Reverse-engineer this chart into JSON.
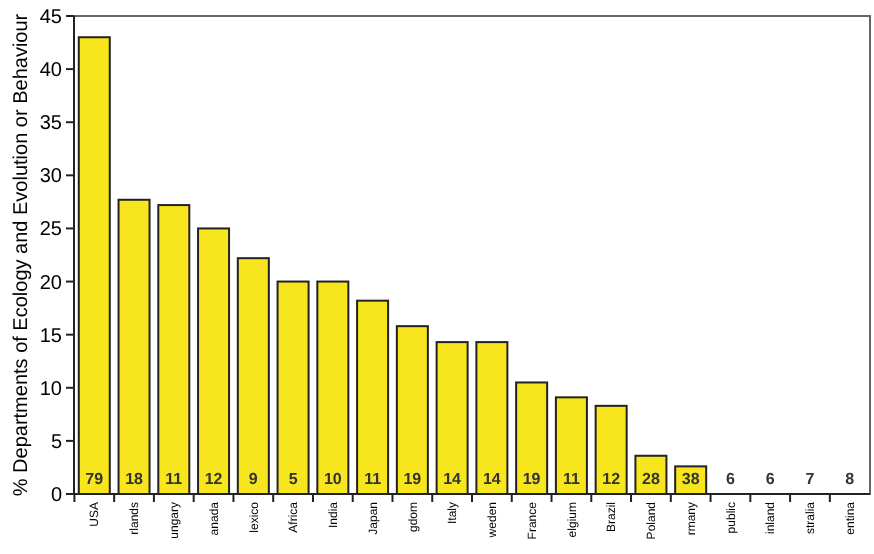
{
  "chart_data": {
    "type": "bar",
    "ylabel": "% Departments of Ecology and Evolution or Behaviour",
    "categories": [
      "USA",
      "rlands",
      "ungary",
      "anada",
      "lexico",
      "Africa",
      "India",
      "Japan",
      "gdom",
      "Italy",
      "weden",
      "France",
      "elgium",
      "Brazil",
      "Poland",
      "rmany",
      "public",
      "inland",
      "stralia",
      "entina"
    ],
    "values": [
      43,
      27.7,
      27.2,
      25,
      22.2,
      20,
      20,
      18.2,
      15.8,
      14.3,
      14.3,
      10.5,
      9.1,
      8.3,
      3.6,
      2.6,
      0,
      0,
      0,
      0
    ],
    "color": "#f7e51e",
    "ylim": [
      0,
      45
    ],
    "yticks": [
      0,
      5,
      10,
      15,
      20,
      25,
      30,
      35,
      40,
      45
    ],
    "grid": false,
    "annotations": [
      "79",
      "18",
      "11",
      "12",
      "9",
      "5",
      "10",
      "11",
      "19",
      "14",
      "14",
      "19",
      "11",
      "12",
      "28",
      "38",
      "6",
      "6",
      "7",
      "8"
    ]
  }
}
